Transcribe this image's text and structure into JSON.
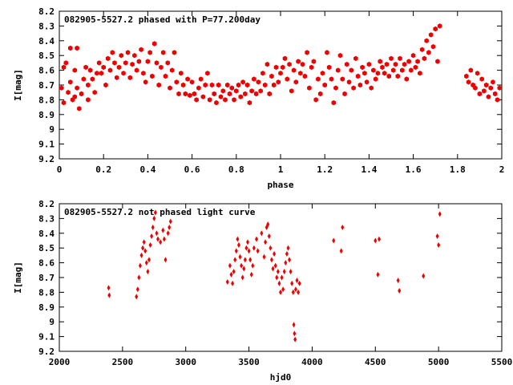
{
  "chart_data": [
    {
      "type": "scatter",
      "title": "082905-5527.2 phased with P=77.200day",
      "xlabel": "phase",
      "ylabel": "I[mag]",
      "xlim": [
        0,
        2
      ],
      "ylim": [
        8.2,
        9.2
      ],
      "y_inverted": true,
      "grid": false,
      "marker": "filled-hexagon",
      "color": "#ee0000",
      "xticks": [
        "0",
        "0.2",
        "0.4",
        "0.6",
        "0.8",
        "1",
        "1.2",
        "1.4",
        "1.6",
        "1.8",
        "2"
      ],
      "yticks": [
        "8.2",
        "8.3",
        "8.4",
        "8.5",
        "8.6",
        "8.7",
        "8.8",
        "8.9",
        "9",
        "9.1",
        "9.2"
      ],
      "points": [
        [
          0.01,
          8.72
        ],
        [
          0.02,
          8.58
        ],
        [
          0.02,
          8.82
        ],
        [
          0.03,
          8.55
        ],
        [
          0.04,
          8.75
        ],
        [
          0.05,
          8.45
        ],
        [
          0.05,
          8.68
        ],
        [
          0.06,
          8.8
        ],
        [
          0.07,
          8.6
        ],
        [
          0.07,
          8.78
        ],
        [
          0.08,
          8.45
        ],
        [
          0.08,
          8.72
        ],
        [
          0.09,
          8.86
        ],
        [
          0.1,
          8.76
        ],
        [
          0.11,
          8.66
        ],
        [
          0.12,
          8.58
        ],
        [
          0.13,
          8.8
        ],
        [
          0.13,
          8.7
        ],
        [
          0.14,
          8.6
        ],
        [
          0.15,
          8.66
        ],
        [
          0.16,
          8.75
        ],
        [
          0.17,
          8.62
        ],
        [
          0.18,
          8.55
        ],
        [
          0.19,
          8.62
        ],
        [
          0.2,
          8.58
        ],
        [
          0.21,
          8.7
        ],
        [
          0.22,
          8.52
        ],
        [
          0.23,
          8.6
        ],
        [
          0.24,
          8.48
        ],
        [
          0.25,
          8.55
        ],
        [
          0.26,
          8.65
        ],
        [
          0.27,
          8.58
        ],
        [
          0.28,
          8.5
        ],
        [
          0.29,
          8.62
        ],
        [
          0.3,
          8.55
        ],
        [
          0.31,
          8.48
        ],
        [
          0.32,
          8.65
        ],
        [
          0.33,
          8.56
        ],
        [
          0.34,
          8.5
        ],
        [
          0.35,
          8.6
        ],
        [
          0.36,
          8.54
        ],
        [
          0.37,
          8.46
        ],
        [
          0.38,
          8.62
        ],
        [
          0.39,
          8.68
        ],
        [
          0.4,
          8.54
        ],
        [
          0.41,
          8.48
        ],
        [
          0.42,
          8.64
        ],
        [
          0.43,
          8.42
        ],
        [
          0.44,
          8.55
        ],
        [
          0.45,
          8.7
        ],
        [
          0.46,
          8.58
        ],
        [
          0.47,
          8.48
        ],
        [
          0.48,
          8.64
        ],
        [
          0.49,
          8.55
        ],
        [
          0.5,
          8.72
        ],
        [
          0.51,
          8.6
        ],
        [
          0.52,
          8.48
        ],
        [
          0.53,
          8.68
        ],
        [
          0.54,
          8.76
        ],
        [
          0.55,
          8.62
        ],
        [
          0.56,
          8.7
        ],
        [
          0.57,
          8.76
        ],
        [
          0.58,
          8.66
        ],
        [
          0.59,
          8.77
        ],
        [
          0.6,
          8.68
        ],
        [
          0.61,
          8.76
        ],
        [
          0.62,
          8.8
        ],
        [
          0.63,
          8.72
        ],
        [
          0.64,
          8.66
        ],
        [
          0.65,
          8.78
        ],
        [
          0.66,
          8.7
        ],
        [
          0.67,
          8.62
        ],
        [
          0.68,
          8.8
        ],
        [
          0.69,
          8.7
        ],
        [
          0.7,
          8.76
        ],
        [
          0.71,
          8.82
        ],
        [
          0.72,
          8.7
        ],
        [
          0.73,
          8.78
        ],
        [
          0.74,
          8.74
        ],
        [
          0.75,
          8.8
        ],
        [
          0.76,
          8.7
        ],
        [
          0.77,
          8.76
        ],
        [
          0.78,
          8.72
        ],
        [
          0.79,
          8.8
        ],
        [
          0.8,
          8.74
        ],
        [
          0.81,
          8.7
        ],
        [
          0.82,
          8.78
        ],
        [
          0.83,
          8.68
        ],
        [
          0.84,
          8.76
        ],
        [
          0.85,
          8.7
        ],
        [
          0.86,
          8.82
        ],
        [
          0.87,
          8.74
        ],
        [
          0.88,
          8.66
        ],
        [
          0.89,
          8.76
        ],
        [
          0.9,
          8.68
        ],
        [
          0.91,
          8.74
        ],
        [
          0.92,
          8.62
        ],
        [
          0.93,
          8.7
        ],
        [
          0.94,
          8.56
        ],
        [
          0.95,
          8.76
        ],
        [
          0.96,
          8.64
        ],
        [
          0.97,
          8.7
        ],
        [
          0.98,
          8.58
        ],
        [
          0.99,
          8.68
        ],
        [
          1.0,
          8.62
        ],
        [
          1.01,
          8.58
        ],
        [
          1.02,
          8.52
        ],
        [
          1.03,
          8.66
        ],
        [
          1.04,
          8.56
        ],
        [
          1.05,
          8.74
        ],
        [
          1.06,
          8.6
        ],
        [
          1.07,
          8.68
        ],
        [
          1.08,
          8.54
        ],
        [
          1.09,
          8.62
        ],
        [
          1.1,
          8.56
        ],
        [
          1.11,
          8.64
        ],
        [
          1.12,
          8.48
        ],
        [
          1.13,
          8.72
        ],
        [
          1.14,
          8.58
        ],
        [
          1.15,
          8.54
        ],
        [
          1.16,
          8.8
        ],
        [
          1.17,
          8.66
        ],
        [
          1.18,
          8.76
        ],
        [
          1.19,
          8.62
        ],
        [
          1.2,
          8.7
        ],
        [
          1.21,
          8.48
        ],
        [
          1.22,
          8.58
        ],
        [
          1.23,
          8.66
        ],
        [
          1.24,
          8.82
        ],
        [
          1.25,
          8.72
        ],
        [
          1.26,
          8.6
        ],
        [
          1.27,
          8.5
        ],
        [
          1.28,
          8.66
        ],
        [
          1.29,
          8.76
        ],
        [
          1.3,
          8.56
        ],
        [
          1.31,
          8.68
        ],
        [
          1.32,
          8.6
        ],
        [
          1.33,
          8.72
        ],
        [
          1.34,
          8.52
        ],
        [
          1.35,
          8.64
        ],
        [
          1.36,
          8.7
        ],
        [
          1.37,
          8.58
        ],
        [
          1.38,
          8.62
        ],
        [
          1.39,
          8.68
        ],
        [
          1.4,
          8.56
        ],
        [
          1.41,
          8.72
        ],
        [
          1.42,
          8.6
        ],
        [
          1.43,
          8.66
        ],
        [
          1.44,
          8.62
        ],
        [
          1.45,
          8.54
        ],
        [
          1.46,
          8.58
        ],
        [
          1.47,
          8.62
        ],
        [
          1.48,
          8.56
        ],
        [
          1.49,
          8.64
        ],
        [
          1.5,
          8.52
        ],
        [
          1.51,
          8.6
        ],
        [
          1.52,
          8.56
        ],
        [
          1.53,
          8.64
        ],
        [
          1.54,
          8.52
        ],
        [
          1.55,
          8.6
        ],
        [
          1.56,
          8.56
        ],
        [
          1.57,
          8.66
        ],
        [
          1.58,
          8.54
        ],
        [
          1.59,
          8.6
        ],
        [
          1.6,
          8.5
        ],
        [
          1.61,
          8.58
        ],
        [
          1.62,
          8.54
        ],
        [
          1.63,
          8.62
        ],
        [
          1.64,
          8.46
        ],
        [
          1.65,
          8.52
        ],
        [
          1.66,
          8.4
        ],
        [
          1.67,
          8.48
        ],
        [
          1.68,
          8.36
        ],
        [
          1.69,
          8.44
        ],
        [
          1.7,
          8.32
        ],
        [
          1.71,
          8.54
        ],
        [
          1.72,
          8.3
        ],
        [
          1.84,
          8.64
        ],
        [
          1.85,
          8.68
        ],
        [
          1.86,
          8.6
        ],
        [
          1.87,
          8.7
        ],
        [
          1.88,
          8.72
        ],
        [
          1.89,
          8.62
        ],
        [
          1.9,
          8.76
        ],
        [
          1.91,
          8.66
        ],
        [
          1.92,
          8.74
        ],
        [
          1.93,
          8.7
        ],
        [
          1.94,
          8.78
        ],
        [
          1.95,
          8.72
        ],
        [
          1.96,
          8.68
        ],
        [
          1.97,
          8.76
        ],
        [
          1.98,
          8.8
        ],
        [
          1.99,
          8.72
        ]
      ]
    },
    {
      "type": "scatter",
      "title": "082905-5527.2 not phased light curve",
      "xlabel": "hjd0",
      "ylabel": "I[mag]",
      "xlim": [
        2000,
        5500
      ],
      "ylim": [
        8.2,
        9.2
      ],
      "y_inverted": true,
      "grid": false,
      "marker": "filled-diamond",
      "color": "#ee0000",
      "xticks": [
        "2000",
        "2500",
        "3000",
        "3500",
        "4000",
        "4500",
        "5000",
        "5500"
      ],
      "yticks": [
        "8.2",
        "8.3",
        "8.4",
        "8.5",
        "8.6",
        "8.7",
        "8.8",
        "8.9",
        "9",
        "9.1",
        "9.2"
      ],
      "points": [
        [
          2390,
          8.77
        ],
        [
          2395,
          8.82
        ],
        [
          2610,
          8.83
        ],
        [
          2620,
          8.78
        ],
        [
          2630,
          8.7
        ],
        [
          2640,
          8.62
        ],
        [
          2650,
          8.55
        ],
        [
          2660,
          8.5
        ],
        [
          2670,
          8.46
        ],
        [
          2680,
          8.52
        ],
        [
          2690,
          8.6
        ],
        [
          2700,
          8.66
        ],
        [
          2710,
          8.58
        ],
        [
          2720,
          8.48
        ],
        [
          2730,
          8.42
        ],
        [
          2740,
          8.36
        ],
        [
          2750,
          8.3
        ],
        [
          2760,
          8.26
        ],
        [
          2770,
          8.4
        ],
        [
          2780,
          8.44
        ],
        [
          2800,
          8.46
        ],
        [
          2820,
          8.38
        ],
        [
          2830,
          8.44
        ],
        [
          2840,
          8.58
        ],
        [
          2860,
          8.4
        ],
        [
          2870,
          8.36
        ],
        [
          2880,
          8.32
        ],
        [
          3330,
          8.73
        ],
        [
          3350,
          8.62
        ],
        [
          3360,
          8.68
        ],
        [
          3370,
          8.74
        ],
        [
          3380,
          8.66
        ],
        [
          3390,
          8.58
        ],
        [
          3400,
          8.52
        ],
        [
          3410,
          8.44
        ],
        [
          3420,
          8.48
        ],
        [
          3430,
          8.56
        ],
        [
          3440,
          8.62
        ],
        [
          3450,
          8.7
        ],
        [
          3460,
          8.64
        ],
        [
          3470,
          8.58
        ],
        [
          3480,
          8.5
        ],
        [
          3490,
          8.46
        ],
        [
          3500,
          8.52
        ],
        [
          3510,
          8.58
        ],
        [
          3520,
          8.68
        ],
        [
          3530,
          8.62
        ],
        [
          3540,
          8.5
        ],
        [
          3560,
          8.44
        ],
        [
          3570,
          8.52
        ],
        [
          3600,
          8.4
        ],
        [
          3620,
          8.56
        ],
        [
          3630,
          8.46
        ],
        [
          3640,
          8.36
        ],
        [
          3650,
          8.34
        ],
        [
          3660,
          8.42
        ],
        [
          3670,
          8.5
        ],
        [
          3680,
          8.58
        ],
        [
          3690,
          8.64
        ],
        [
          3700,
          8.54
        ],
        [
          3710,
          8.62
        ],
        [
          3720,
          8.7
        ],
        [
          3730,
          8.66
        ],
        [
          3740,
          8.74
        ],
        [
          3750,
          8.8
        ],
        [
          3760,
          8.7
        ],
        [
          3770,
          8.78
        ],
        [
          3780,
          8.66
        ],
        [
          3790,
          8.6
        ],
        [
          3800,
          8.54
        ],
        [
          3810,
          8.5
        ],
        [
          3820,
          8.58
        ],
        [
          3830,
          8.66
        ],
        [
          3840,
          8.74
        ],
        [
          3850,
          8.8
        ],
        [
          3855,
          9.02
        ],
        [
          3860,
          9.08
        ],
        [
          3865,
          9.12
        ],
        [
          3870,
          8.78
        ],
        [
          3880,
          8.72
        ],
        [
          3890,
          8.8
        ],
        [
          3900,
          8.74
        ],
        [
          4170,
          8.45
        ],
        [
          4230,
          8.52
        ],
        [
          4240,
          8.36
        ],
        [
          4500,
          8.45
        ],
        [
          4520,
          8.68
        ],
        [
          4530,
          8.44
        ],
        [
          4680,
          8.72
        ],
        [
          4690,
          8.79
        ],
        [
          4880,
          8.69
        ],
        [
          4990,
          8.42
        ],
        [
          5000,
          8.48
        ],
        [
          5010,
          8.27
        ]
      ]
    }
  ]
}
